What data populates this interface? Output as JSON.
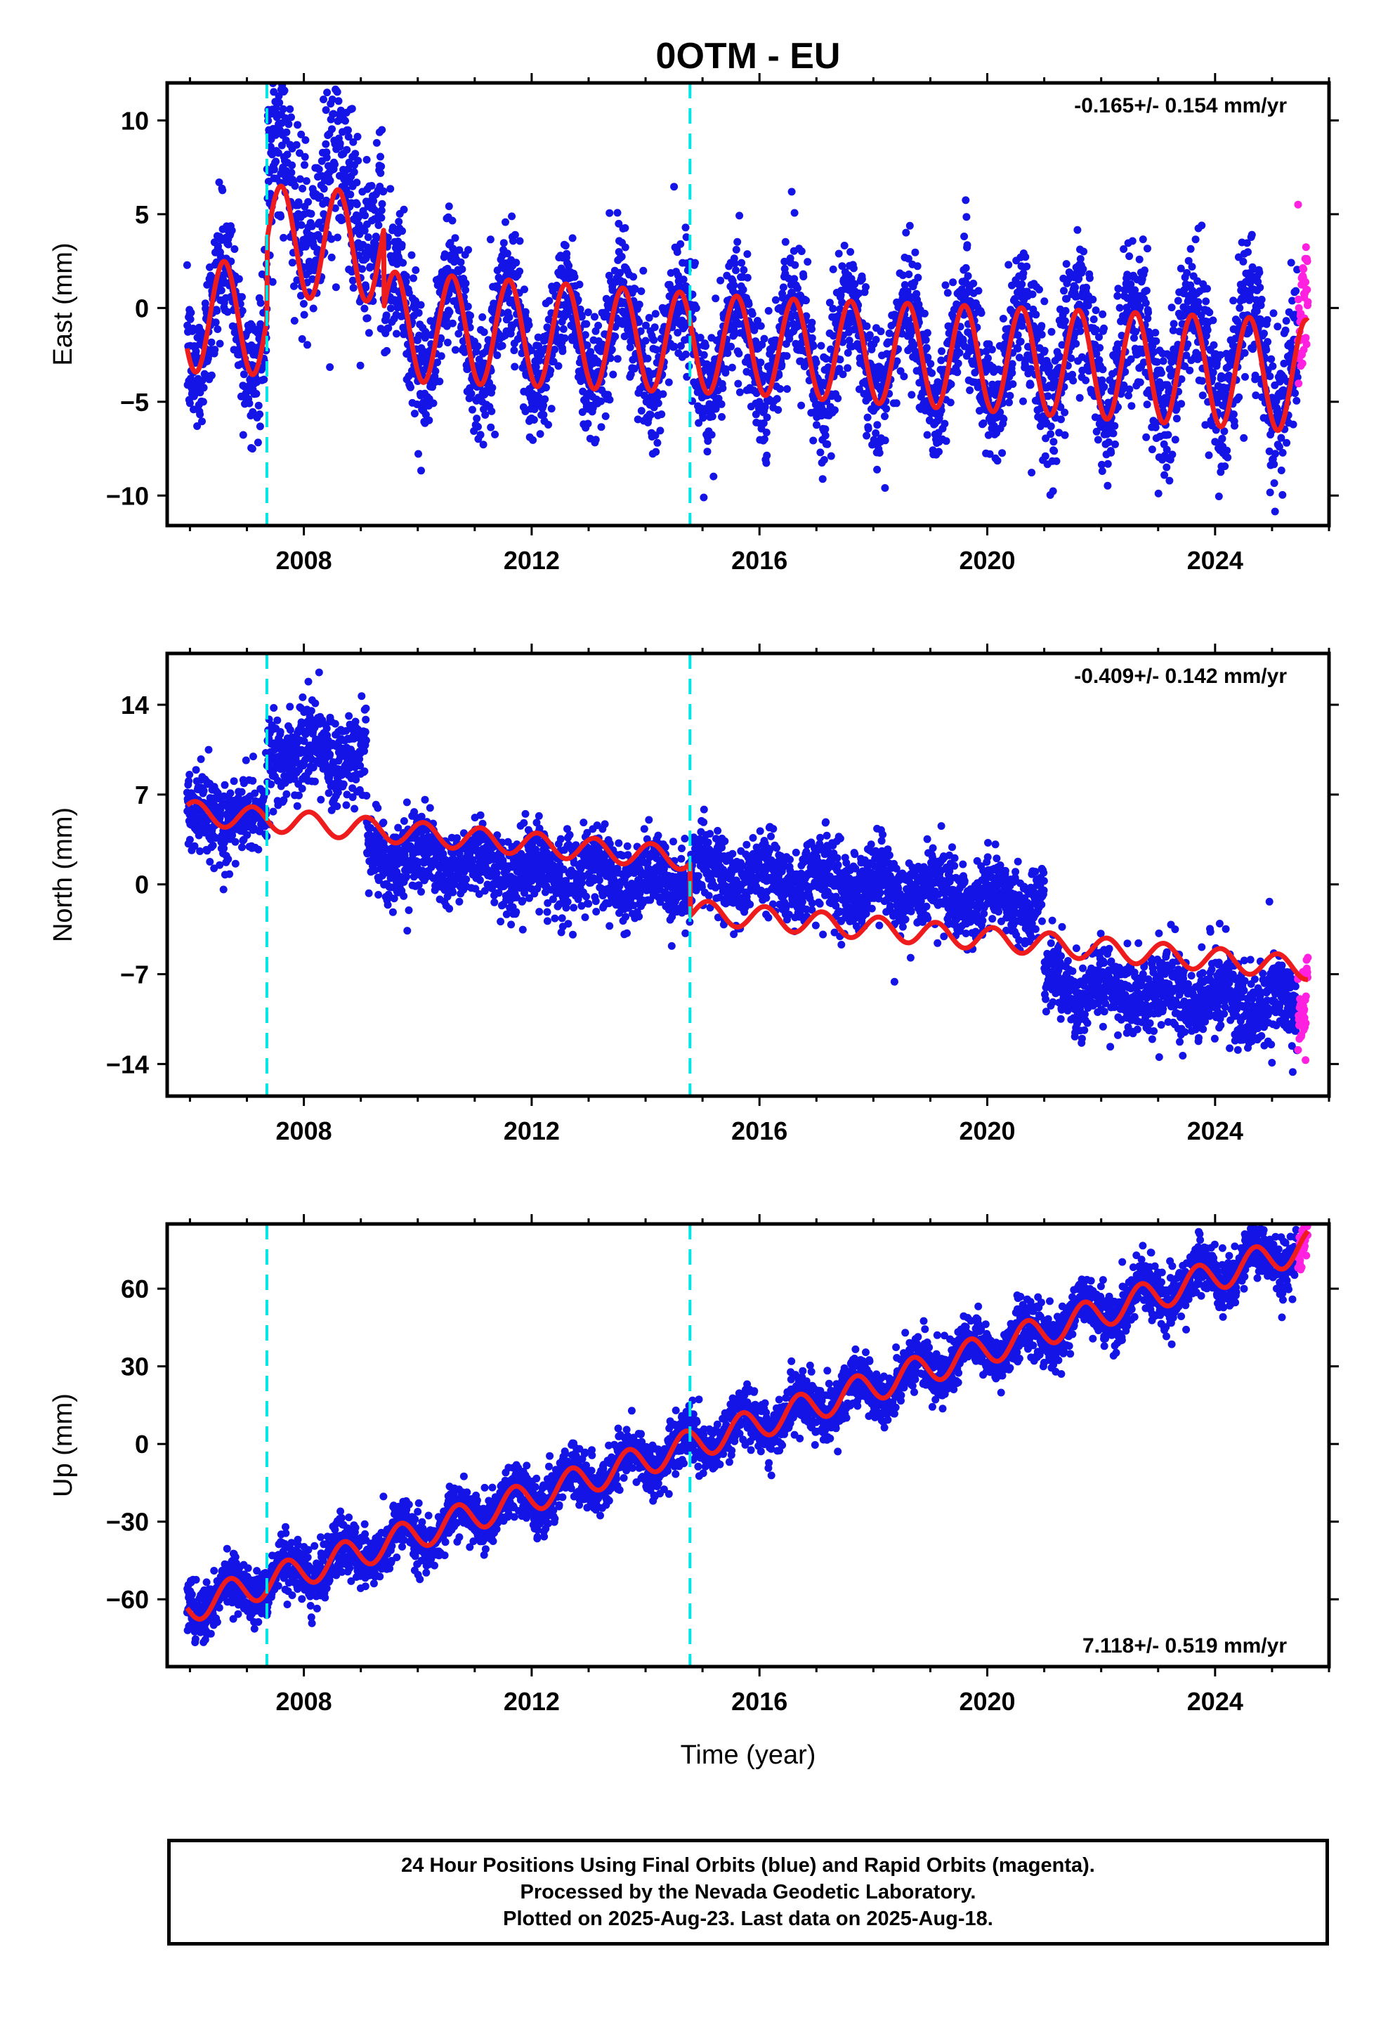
{
  "title": "0OTM - EU",
  "footer": {
    "line1": "24 Hour Positions Using Final Orbits (blue) and Rapid Orbits (magenta).",
    "line2": "Processed by the Nevada Geodetic Laboratory.",
    "line3": "Plotted on 2025-Aug-23. Last data on 2025-Aug-18."
  },
  "colors": {
    "final_orbits": "#1414e6",
    "rapid_orbits": "#ff20e0",
    "model": "#ee1c1c",
    "offsets": "#00e5e5"
  },
  "chart_data": [
    {
      "type": "scatter",
      "component": "east",
      "ylabel": "East (mm)",
      "xlabel": "",
      "xlim": [
        2005.6,
        2026.0
      ],
      "ylim": [
        -11.6,
        12.0
      ],
      "xticks": [
        2008,
        2012,
        2016,
        2020,
        2024
      ],
      "yticks": [
        -10,
        -5,
        0,
        5,
        10
      ],
      "ytick_labels": [
        "−10",
        "−5",
        "0",
        "5",
        "10"
      ],
      "rate_text": "-0.165+/- 0.154 mm/yr",
      "rate_position": "top-right",
      "offsets": [
        2007.35,
        2014.78
      ],
      "data_span": [
        2005.95,
        2025.63
      ],
      "rapid_span": [
        2025.45,
        2025.63
      ],
      "model": {
        "rate": -0.165,
        "intercept": -0.4,
        "annual_amp": 3.0,
        "phase_year": 2006.35,
        "steps": [
          {
            "year": 2007.35,
            "mm": 4.2
          },
          {
            "year": 2009.4,
            "mm": -4.2
          }
        ],
        "amp_points": [
          [
            2006.0,
            3.0
          ],
          [
            2010.0,
            2.9
          ],
          [
            2016.0,
            2.6
          ],
          [
            2020.0,
            2.8
          ],
          [
            2025.6,
            3.0
          ]
        ]
      },
      "scatter": {
        "noise": 1.6,
        "segments": [
          {
            "from": 2007.35,
            "to": 2009.4,
            "shift": 2.5,
            "noise": 2.4
          },
          {
            "from": 2020.8,
            "to": 2025.6,
            "shift": 0.6,
            "noise": 1.9
          }
        ]
      }
    },
    {
      "type": "scatter",
      "component": "north",
      "ylabel": "North (mm)",
      "xlabel": "",
      "xlim": [
        2005.6,
        2026.0
      ],
      "ylim": [
        -16.5,
        18.0
      ],
      "xticks": [
        2008,
        2012,
        2016,
        2020,
        2024
      ],
      "yticks": [
        -14,
        -7,
        0,
        7,
        14
      ],
      "ytick_labels": [
        "−14",
        "−7",
        "0",
        "7",
        "14"
      ],
      "rate_text": "-0.409+/- 0.142 mm/yr",
      "rate_position": "top-right",
      "offsets": [
        2007.35,
        2014.78
      ],
      "data_span": [
        2005.95,
        2025.63
      ],
      "rapid_span": [
        2025.45,
        2025.63
      ],
      "model": {
        "rate": -0.409,
        "intercept": 5.6,
        "annual_amp": 0.9,
        "phase_year": 2006.85,
        "steps": [
          {
            "year": 2014.78,
            "mm": -4.1
          }
        ],
        "amp_points": [
          [
            2006.0,
            0.9
          ],
          [
            2025.6,
            0.9
          ]
        ]
      },
      "scatter": {
        "noise": 1.5,
        "segments": [
          {
            "from": 2007.35,
            "to": 2009.1,
            "shift": 5.5,
            "noise": 1.6
          },
          {
            "from": 2009.1,
            "to": 2014.78,
            "shift": -2.0,
            "noise": 1.4
          },
          {
            "from": 2014.78,
            "to": 2021.0,
            "shift": 3.2,
            "noise": 1.4
          },
          {
            "from": 2021.0,
            "to": 2025.6,
            "shift": -3.0,
            "noise": 1.5
          }
        ]
      }
    },
    {
      "type": "scatter",
      "component": "up",
      "ylabel": "Up (mm)",
      "xlabel": "Time (year)",
      "xlim": [
        2005.6,
        2026.0
      ],
      "ylim": [
        -86.0,
        85.0
      ],
      "xticks": [
        2008,
        2012,
        2016,
        2020,
        2024
      ],
      "yticks": [
        -60,
        -30,
        0,
        30,
        60
      ],
      "ytick_labels": [
        "−60",
        "−30",
        "0",
        "30",
        "60"
      ],
      "rate_text": "7.118+/- 0.519 mm/yr",
      "rate_position": "bottom-right",
      "offsets": [
        2007.35,
        2014.78
      ],
      "data_span": [
        2005.95,
        2025.63
      ],
      "rapid_span": [
        2025.45,
        2025.63
      ],
      "model": {
        "rate": 7.118,
        "intercept": -63.0,
        "annual_amp": 6.0,
        "phase_year": 2006.45,
        "steps": [],
        "amp_points": [
          [
            2006.0,
            6.0
          ],
          [
            2025.6,
            6.0
          ]
        ]
      },
      "scatter": {
        "noise": 5.0,
        "segments": []
      }
    }
  ]
}
